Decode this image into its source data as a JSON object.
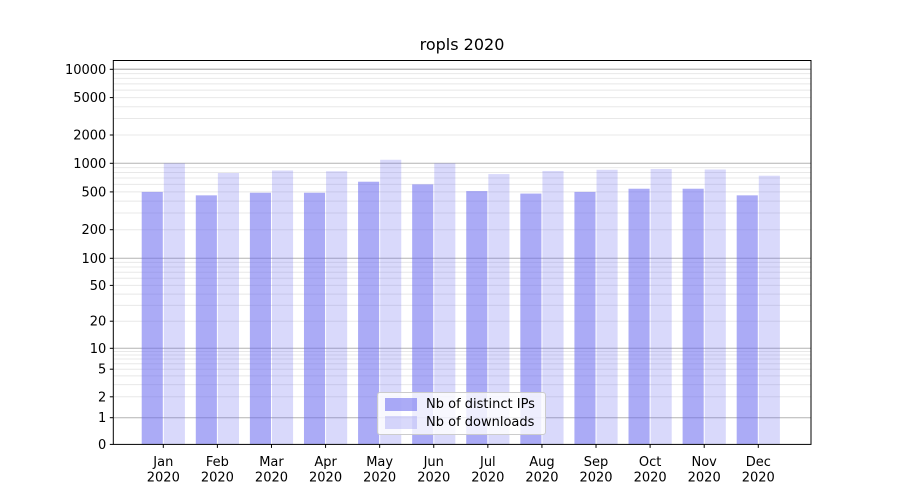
{
  "chart_data": {
    "type": "bar",
    "title": "ropls 2020",
    "categories": [
      "Jan 2020",
      "Feb 2020",
      "Mar 2020",
      "Apr 2020",
      "May 2020",
      "Jun 2020",
      "Jul 2020",
      "Aug 2020",
      "Sep 2020",
      "Oct 2020",
      "Nov 2020",
      "Dec 2020"
    ],
    "series": [
      {
        "name": "Nb of distinct IPs",
        "values": [
          500,
          460,
          490,
          490,
          640,
          600,
          510,
          480,
          500,
          540,
          540,
          460
        ]
      },
      {
        "name": "Nb of downloads",
        "values": [
          1000,
          790,
          840,
          825,
          1090,
          1000,
          770,
          830,
          855,
          870,
          860,
          740
        ]
      }
    ],
    "xlabel": "",
    "ylabel": "",
    "yscale": "symlog",
    "y_ticks": [
      0,
      1,
      2,
      5,
      10,
      20,
      50,
      100,
      200,
      500,
      1000,
      2000,
      5000,
      10000
    ],
    "y_major_gridlines": [
      0,
      1,
      10,
      100,
      1000,
      10000
    ],
    "ylim": [
      0,
      12500
    ],
    "grid": true,
    "legend_position": "lower center"
  },
  "legend": {
    "items": [
      {
        "label": "Nb of distinct IPs",
        "swatch": "rgba(102,102,238,0.55)"
      },
      {
        "label": "Nb of downloads",
        "swatch": "rgba(102,102,238,0.25)"
      }
    ]
  },
  "colors": {
    "bar_base": "#6666ee",
    "bar_ips": "rgba(102,102,238,0.55)",
    "bar_downloads": "rgba(102,102,238,0.25)",
    "grid_major": "#b3b3b3",
    "grid_minor": "#e8e8e8",
    "axis": "#000000",
    "text": "#000000",
    "legend_border": "#cccccc",
    "background": "#ffffff"
  }
}
